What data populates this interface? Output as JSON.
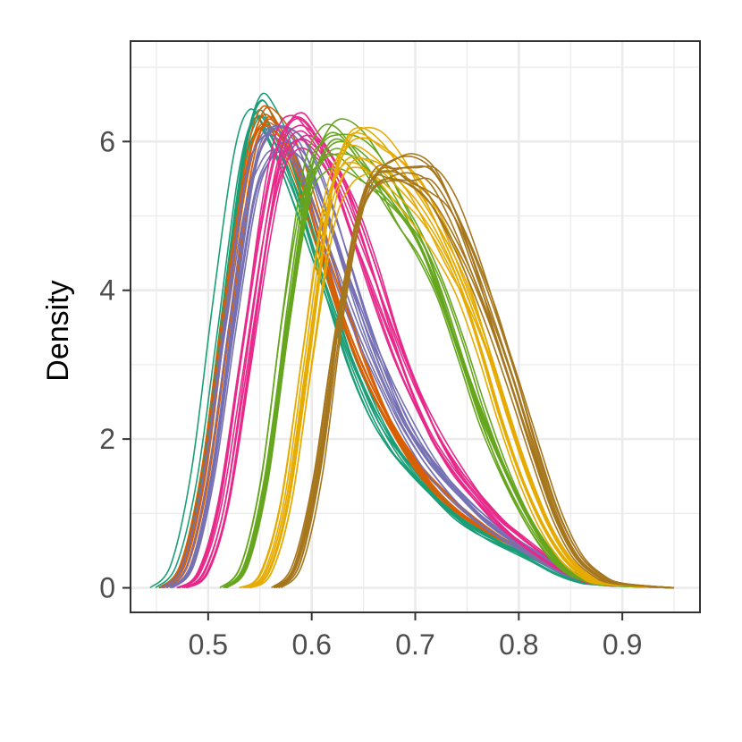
{
  "chart_data": {
    "type": "line",
    "title": "",
    "xlabel": "",
    "ylabel": "Density",
    "xlim": [
      0.425,
      0.975
    ],
    "ylim": [
      -0.33,
      7.35
    ],
    "x_ticks": [
      0.5,
      0.6,
      0.7,
      0.8,
      0.9
    ],
    "x_tick_labels": [
      "0.5",
      "0.6",
      "0.7",
      "0.8",
      "0.9"
    ],
    "y_ticks": [
      0,
      2,
      4,
      6
    ],
    "y_tick_labels": [
      "0",
      "2",
      "4",
      "6"
    ],
    "grid": true,
    "legend": "none",
    "series": [
      {
        "color": "#1b9e77",
        "lines": 10,
        "points": [
          [
            0.45,
            0
          ],
          [
            0.47,
            0.3
          ],
          [
            0.49,
            1.5
          ],
          [
            0.51,
            3.6
          ],
          [
            0.53,
            5.6
          ],
          [
            0.545,
            6.3
          ],
          [
            0.56,
            6.1
          ],
          [
            0.58,
            5.5
          ],
          [
            0.6,
            4.6
          ],
          [
            0.62,
            3.7
          ],
          [
            0.64,
            2.9
          ],
          [
            0.66,
            2.3
          ],
          [
            0.68,
            1.85
          ],
          [
            0.7,
            1.5
          ],
          [
            0.72,
            1.2
          ],
          [
            0.74,
            0.95
          ],
          [
            0.76,
            0.75
          ],
          [
            0.78,
            0.6
          ],
          [
            0.8,
            0.47
          ],
          [
            0.82,
            0.33
          ],
          [
            0.84,
            0.18
          ],
          [
            0.86,
            0.08
          ],
          [
            0.88,
            0.04
          ],
          [
            0.95,
            0
          ]
        ]
      },
      {
        "color": "#d95f02",
        "lines": 10,
        "points": [
          [
            0.455,
            0
          ],
          [
            0.475,
            0.3
          ],
          [
            0.495,
            1.5
          ],
          [
            0.515,
            3.6
          ],
          [
            0.535,
            5.5
          ],
          [
            0.55,
            6.2
          ],
          [
            0.565,
            6.1
          ],
          [
            0.585,
            5.6
          ],
          [
            0.605,
            4.8
          ],
          [
            0.625,
            3.9
          ],
          [
            0.645,
            3.1
          ],
          [
            0.665,
            2.45
          ],
          [
            0.685,
            1.95
          ],
          [
            0.705,
            1.55
          ],
          [
            0.725,
            1.25
          ],
          [
            0.745,
            1.0
          ],
          [
            0.765,
            0.8
          ],
          [
            0.785,
            0.63
          ],
          [
            0.805,
            0.5
          ],
          [
            0.825,
            0.35
          ],
          [
            0.845,
            0.2
          ],
          [
            0.865,
            0.09
          ],
          [
            0.885,
            0.04
          ],
          [
            0.95,
            0
          ]
        ]
      },
      {
        "color": "#7570b3",
        "lines": 10,
        "points": [
          [
            0.46,
            0
          ],
          [
            0.48,
            0.3
          ],
          [
            0.5,
            1.5
          ],
          [
            0.52,
            3.5
          ],
          [
            0.54,
            5.4
          ],
          [
            0.555,
            6.0
          ],
          [
            0.57,
            6.1
          ],
          [
            0.59,
            5.8
          ],
          [
            0.61,
            5.1
          ],
          [
            0.63,
            4.3
          ],
          [
            0.65,
            3.5
          ],
          [
            0.67,
            2.8
          ],
          [
            0.69,
            2.2
          ],
          [
            0.71,
            1.75
          ],
          [
            0.73,
            1.4
          ],
          [
            0.75,
            1.1
          ],
          [
            0.77,
            0.85
          ],
          [
            0.79,
            0.66
          ],
          [
            0.81,
            0.5
          ],
          [
            0.83,
            0.33
          ],
          [
            0.85,
            0.18
          ],
          [
            0.87,
            0.08
          ],
          [
            0.89,
            0.03
          ],
          [
            0.95,
            0
          ]
        ]
      },
      {
        "color": "#e7298a",
        "lines": 10,
        "points": [
          [
            0.475,
            0
          ],
          [
            0.495,
            0.2
          ],
          [
            0.515,
            1.1
          ],
          [
            0.535,
            2.9
          ],
          [
            0.555,
            4.8
          ],
          [
            0.57,
            5.8
          ],
          [
            0.585,
            6.1
          ],
          [
            0.6,
            6.0
          ],
          [
            0.62,
            5.6
          ],
          [
            0.64,
            4.9
          ],
          [
            0.66,
            4.1
          ],
          [
            0.68,
            3.3
          ],
          [
            0.7,
            2.6
          ],
          [
            0.72,
            2.0
          ],
          [
            0.74,
            1.55
          ],
          [
            0.76,
            1.2
          ],
          [
            0.78,
            0.9
          ],
          [
            0.8,
            0.66
          ],
          [
            0.82,
            0.45
          ],
          [
            0.84,
            0.27
          ],
          [
            0.86,
            0.13
          ],
          [
            0.88,
            0.05
          ],
          [
            0.95,
            0
          ]
        ]
      },
      {
        "color": "#66a61e",
        "lines": 10,
        "points": [
          [
            0.515,
            0
          ],
          [
            0.535,
            0.3
          ],
          [
            0.555,
            1.5
          ],
          [
            0.575,
            3.6
          ],
          [
            0.595,
            5.4
          ],
          [
            0.61,
            5.9
          ],
          [
            0.625,
            6.0
          ],
          [
            0.645,
            5.8
          ],
          [
            0.665,
            5.5
          ],
          [
            0.685,
            5.1
          ],
          [
            0.705,
            4.6
          ],
          [
            0.725,
            3.9
          ],
          [
            0.745,
            3.1
          ],
          [
            0.765,
            2.3
          ],
          [
            0.785,
            1.6
          ],
          [
            0.805,
            1.0
          ],
          [
            0.825,
            0.55
          ],
          [
            0.845,
            0.25
          ],
          [
            0.865,
            0.1
          ],
          [
            0.89,
            0.03
          ],
          [
            0.95,
            0
          ]
        ]
      },
      {
        "color": "#e6ab02",
        "lines": 10,
        "points": [
          [
            0.535,
            0
          ],
          [
            0.555,
            0.2
          ],
          [
            0.575,
            1.2
          ],
          [
            0.595,
            3.1
          ],
          [
            0.615,
            5.0
          ],
          [
            0.63,
            5.7
          ],
          [
            0.645,
            5.9
          ],
          [
            0.665,
            5.8
          ],
          [
            0.685,
            5.5
          ],
          [
            0.705,
            5.1
          ],
          [
            0.725,
            4.6
          ],
          [
            0.745,
            4.0
          ],
          [
            0.765,
            3.2
          ],
          [
            0.785,
            2.3
          ],
          [
            0.805,
            1.5
          ],
          [
            0.825,
            0.85
          ],
          [
            0.845,
            0.4
          ],
          [
            0.865,
            0.15
          ],
          [
            0.885,
            0.05
          ],
          [
            0.95,
            0
          ]
        ]
      },
      {
        "color": "#a6761d",
        "lines": 10,
        "points": [
          [
            0.565,
            0
          ],
          [
            0.585,
            0.3
          ],
          [
            0.605,
            1.5
          ],
          [
            0.625,
            3.5
          ],
          [
            0.645,
            5.0
          ],
          [
            0.66,
            5.5
          ],
          [
            0.675,
            5.6
          ],
          [
            0.695,
            5.55
          ],
          [
            0.715,
            5.4
          ],
          [
            0.735,
            5.0
          ],
          [
            0.755,
            4.4
          ],
          [
            0.775,
            3.6
          ],
          [
            0.795,
            2.7
          ],
          [
            0.815,
            1.8
          ],
          [
            0.835,
            1.0
          ],
          [
            0.855,
            0.45
          ],
          [
            0.875,
            0.18
          ],
          [
            0.895,
            0.06
          ],
          [
            0.95,
            0
          ]
        ]
      }
    ]
  }
}
